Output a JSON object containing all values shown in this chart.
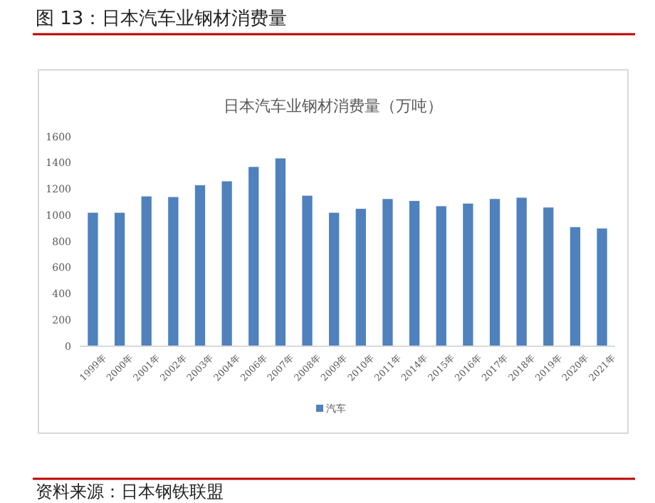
{
  "chart_data": {
    "type": "bar",
    "title": "图 13：日本汽车业钢材消费量",
    "subtitle": "日本汽车业钢材消费量（万吨）",
    "categories": [
      "1999年",
      "2000年",
      "2001年",
      "2002年",
      "2003年",
      "2004年",
      "2006年",
      "2007年",
      "2008年",
      "2009年",
      "2010年",
      "2011年",
      "2014年",
      "2015年",
      "2016年",
      "2017年",
      "2018年",
      "2019年",
      "2020年",
      "2021年"
    ],
    "series": [
      {
        "name": "汽车",
        "color": "#4f81bd",
        "values": [
          1020,
          1020,
          1145,
          1140,
          1230,
          1260,
          1370,
          1435,
          1150,
          1020,
          1050,
          1125,
          1110,
          1070,
          1090,
          1125,
          1135,
          1060,
          910,
          900
        ]
      }
    ],
    "ylim": [
      0,
      1600
    ],
    "yticks": [
      0,
      200,
      400,
      600,
      800,
      1000,
      1200,
      1400,
      1600
    ],
    "grid": false,
    "legend": "bottom",
    "annotations": [
      "资料来源：日本钢铁联盟"
    ]
  }
}
